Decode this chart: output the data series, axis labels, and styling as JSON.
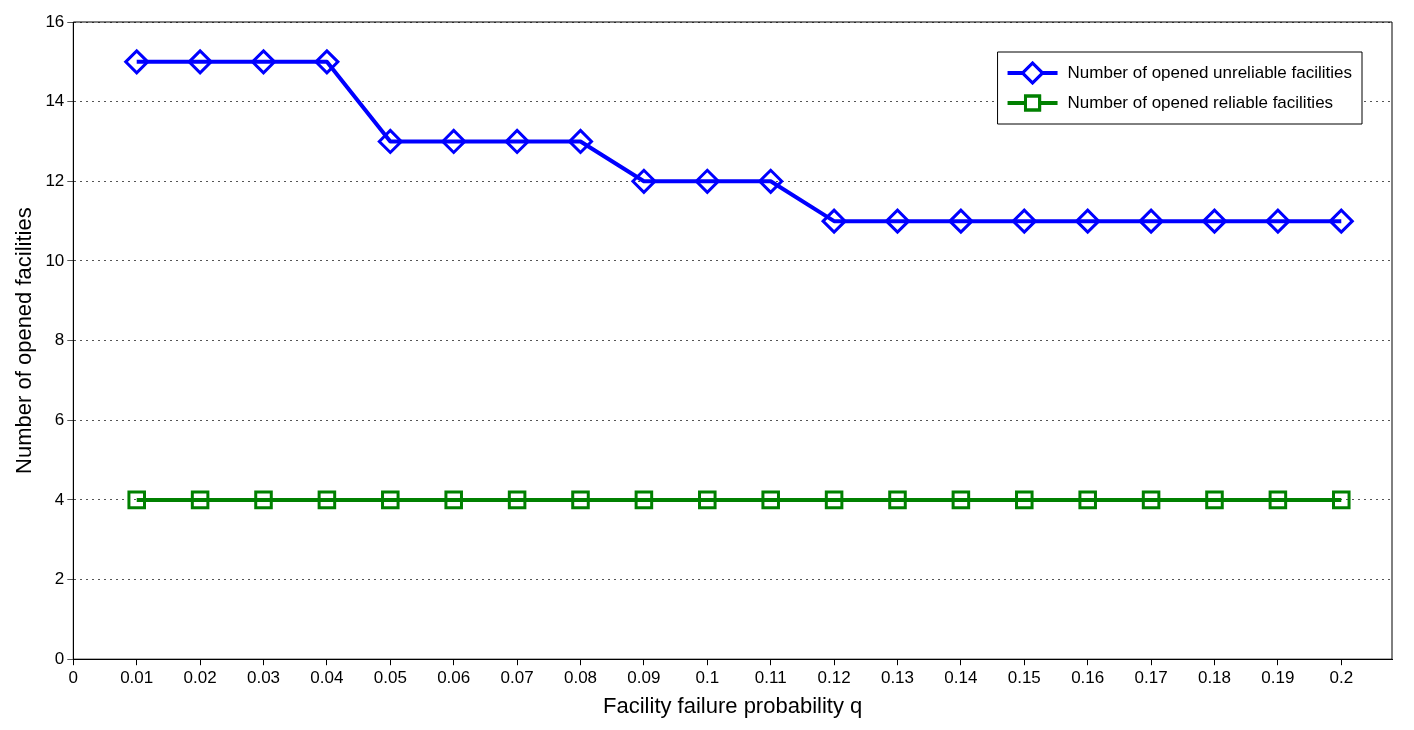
{
  "chart_data": {
    "type": "line",
    "xlabel": "Facility failure probability q",
    "ylabel": "Number of opened facilities",
    "x": [
      0.01,
      0.02,
      0.03,
      0.04,
      0.05,
      0.06,
      0.07,
      0.08,
      0.09,
      0.1,
      0.11,
      0.12,
      0.13,
      0.14,
      0.15,
      0.16,
      0.17,
      0.18,
      0.19,
      0.2
    ],
    "series": [
      {
        "name": "Number of opened unreliable facilities",
        "color": "#0000ff",
        "marker": "diamond",
        "values": [
          15,
          15,
          15,
          15,
          13,
          13,
          13,
          13,
          12,
          12,
          12,
          11,
          11,
          11,
          11,
          11,
          11,
          11,
          11,
          11
        ]
      },
      {
        "name": "Number of opened reliable facilities",
        "color": "#008000",
        "marker": "square",
        "values": [
          4,
          4,
          4,
          4,
          4,
          4,
          4,
          4,
          4,
          4,
          4,
          4,
          4,
          4,
          4,
          4,
          4,
          4,
          4,
          4
        ]
      }
    ],
    "xlim": [
      0,
      0.208
    ],
    "xticks": [
      0,
      0.01,
      0.02,
      0.03,
      0.04,
      0.05,
      0.06,
      0.07,
      0.08,
      0.09,
      0.1,
      0.11,
      0.12,
      0.13,
      0.14,
      0.15,
      0.16,
      0.17,
      0.18,
      0.19,
      0.2
    ],
    "ylim": [
      0,
      16
    ],
    "yticks": [
      0,
      2,
      4,
      6,
      8,
      10,
      12,
      14,
      16
    ],
    "grid": "y",
    "legend": "top right",
    "line_style": "solid"
  }
}
